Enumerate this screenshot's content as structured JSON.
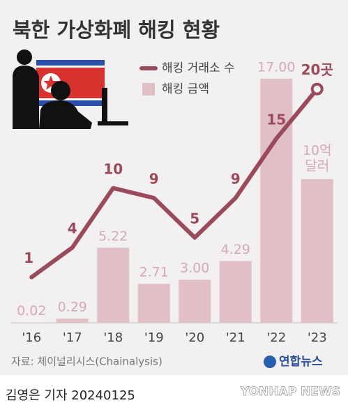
{
  "chart_data": {
    "type": "bar",
    "title": "북한 가상화폐 해킹 현황",
    "categories": [
      "'16",
      "'17",
      "'18",
      "'19",
      "'20",
      "'21",
      "'22",
      "'23"
    ],
    "series": [
      {
        "name": "해킹 거래소 수",
        "type": "line",
        "axis": "y2",
        "color": "#9b4a5c",
        "values": [
          1,
          4,
          10,
          9,
          5,
          9,
          15,
          20
        ],
        "value_labels": [
          "1",
          "4",
          "10",
          "9",
          "5",
          "9",
          "15",
          "20곳"
        ]
      },
      {
        "name": "해킹 금액",
        "type": "bar",
        "color": "#e0bfc6",
        "values": [
          0.02,
          0.29,
          5.22,
          2.71,
          3.0,
          4.29,
          17.0,
          10
        ],
        "value_labels": [
          "0.02",
          "0.29",
          "5.22",
          "2.71",
          "3.00",
          "4.29",
          "17.00",
          "10억 달러"
        ]
      }
    ],
    "ylim": [
      0,
      20
    ],
    "y2lim": [
      -3.6,
      25.4
    ],
    "source": "자료: 체이널리시스(Chainalysis)",
    "logo": "연합뉴스",
    "byline": "김영은 기자  20240125",
    "watermark": "YONHAP NEWS"
  }
}
